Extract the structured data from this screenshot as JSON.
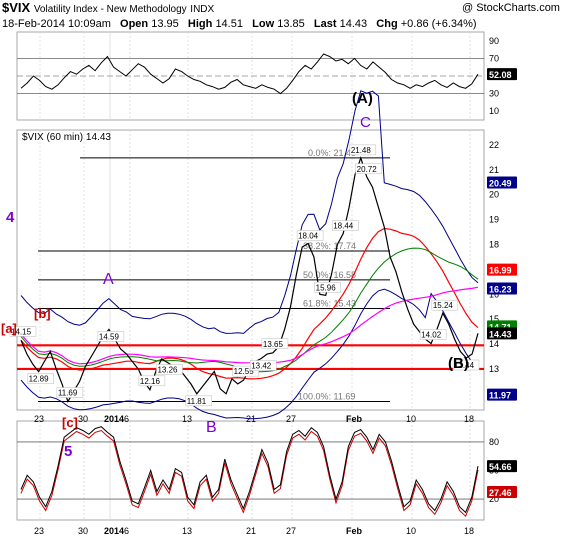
{
  "header": {
    "symbol": "$VIX",
    "name": "Volatility Index - New Methodology",
    "exchange": "INDX",
    "watermark": "@ StockCharts.com",
    "date": "18-Feb-2014 10:09am",
    "open_label": "Open",
    "open": "13.95",
    "high_label": "High",
    "high": "14.51",
    "low_label": "Low",
    "low": "13.85",
    "last_label": "Last",
    "last": "14.43",
    "chg_label": "Chg",
    "chg": "+0.86 (+6.34%)"
  },
  "colors": {
    "frame": "#a7a7a7",
    "price": "#000000",
    "upper_band": "#00008b",
    "sma": "#ff0000",
    "ema": "#008000",
    "magenta": "#ff00ff",
    "support_line": "#ff0000",
    "label_purple": "#7b00d4",
    "label_red": "#cc0000",
    "badge_bg": "#000000"
  },
  "wave_labels": {
    "A_top": "(A)",
    "C": "C",
    "four": "4",
    "A_mid": "A",
    "b": "[b]",
    "a": "[a]",
    "B_paren": "(B)",
    "c": "[c]",
    "five": "5",
    "B": "B"
  },
  "chart_data": [
    {
      "type": "line",
      "panel": "top indicator (RSI)",
      "yticks": [
        "90",
        "70",
        "50",
        "30",
        "10"
      ],
      "ylim": [
        0,
        100
      ],
      "reference_lines": [
        70,
        30
      ],
      "last_value_badge": "52.08",
      "values": [
        36,
        42,
        50,
        45,
        38,
        35,
        40,
        48,
        55,
        52,
        58,
        62,
        56,
        65,
        72,
        60,
        55,
        50,
        57,
        64,
        60,
        52,
        47,
        42,
        47,
        58,
        55,
        50,
        46,
        44,
        40,
        38,
        35,
        37,
        43,
        46,
        40,
        38,
        36,
        40,
        37,
        35,
        30,
        36,
        45,
        55,
        62,
        58,
        66,
        75,
        72,
        67,
        69,
        64,
        70,
        62,
        58,
        66,
        60,
        54,
        46,
        42,
        40,
        36,
        40,
        38,
        42,
        45,
        40,
        37,
        42,
        38,
        36,
        41,
        52
      ]
    },
    {
      "type": "line",
      "panel": "main price",
      "title": "$VIX (60 min) 14.43",
      "yticks": [
        "22",
        "21",
        "20",
        "19",
        "18",
        "17",
        "16",
        "15",
        "14",
        "13",
        "12"
      ],
      "ylim": [
        11.35,
        22.6
      ],
      "xticks": [
        "23",
        "30",
        "2014",
        "6",
        "13",
        "21",
        "27",
        "Feb",
        "10",
        "18"
      ],
      "price_values": [
        14.15,
        13.6,
        13.2,
        12.89,
        13.3,
        13.7,
        13.0,
        12.4,
        11.69,
        12.1,
        12.5,
        13.1,
        13.5,
        13.9,
        14.3,
        14.59,
        14.2,
        13.8,
        13.6,
        13.3,
        13.0,
        12.5,
        12.16,
        12.9,
        13.4,
        13.26,
        13.1,
        13.0,
        12.7,
        12.4,
        12.0,
        12.3,
        12.6,
        12.9,
        12.2,
        12.0,
        12.6,
        12.4,
        12.55,
        13.0,
        13.3,
        13.42,
        13.6,
        13.65,
        13.9,
        14.6,
        15.5,
        16.8,
        17.9,
        18.04,
        17.5,
        16.0,
        15.96,
        16.8,
        18.0,
        18.44,
        19.5,
        20.8,
        21.48,
        20.72,
        20.3,
        19.5,
        18.7,
        17.5,
        16.9,
        16.1,
        15.4,
        14.8,
        14.5,
        14.2,
        14.02,
        14.6,
        15.24,
        14.8,
        14.2,
        13.7,
        13.44,
        13.6,
        14.43
      ],
      "price_labels": [
        "14.15",
        "12.89",
        "11.69",
        "14.59",
        "12.16",
        "13.26",
        "13.65",
        "11.81",
        "12.55",
        "13.42",
        "18.04",
        "15.96",
        "21.48",
        "20.72",
        "18.44",
        "15.24",
        "14.02",
        "13.44"
      ],
      "fibonacci": {
        "levels": [
          "0.0%: 21.48",
          "38.2%: 17.74",
          "50.0%: 16.58",
          "61.8%: 15.43",
          "100.0%: 11.69"
        ],
        "prices": [
          21.48,
          17.74,
          16.58,
          15.43,
          11.69
        ]
      },
      "support_lines": [
        13.95,
        13.0
      ],
      "badges": [
        {
          "value": "20.49",
          "color": "#00008b"
        },
        {
          "value": "16.99",
          "color": "#ff0000"
        },
        {
          "value": "16.23",
          "color": "#00008b"
        },
        {
          "value": "14.71",
          "color": "#008000"
        },
        {
          "value": "14.43",
          "color": "#000000"
        },
        {
          "value": "11.97",
          "color": "#00008b"
        }
      ]
    },
    {
      "type": "line",
      "panel": "bottom indicator (stochastic)",
      "yticks": [
        "80",
        "50",
        "20"
      ],
      "ylim": [
        -2,
        102
      ],
      "reference_lines": [
        80,
        20
      ],
      "last_value_badges": [
        "54.66",
        "27.46"
      ],
      "xticks": [
        "23",
        "30",
        "2014",
        "6",
        "13",
        "21",
        "27",
        "Feb",
        "10",
        "18"
      ],
      "values": [
        30,
        45,
        38,
        22,
        12,
        28,
        55,
        85,
        90,
        95,
        92,
        88,
        94,
        96,
        90,
        85,
        60,
        40,
        18,
        15,
        32,
        50,
        28,
        40,
        30,
        52,
        48,
        22,
        14,
        38,
        45,
        22,
        30,
        62,
        40,
        25,
        10,
        28,
        50,
        72,
        58,
        30,
        35,
        70,
        88,
        92,
        86,
        95,
        90,
        75,
        45,
        20,
        38,
        75,
        90,
        93,
        85,
        72,
        88,
        80,
        60,
        35,
        12,
        18,
        40,
        30,
        15,
        8,
        20,
        38,
        28,
        12,
        6,
        22,
        54.66
      ]
    }
  ]
}
